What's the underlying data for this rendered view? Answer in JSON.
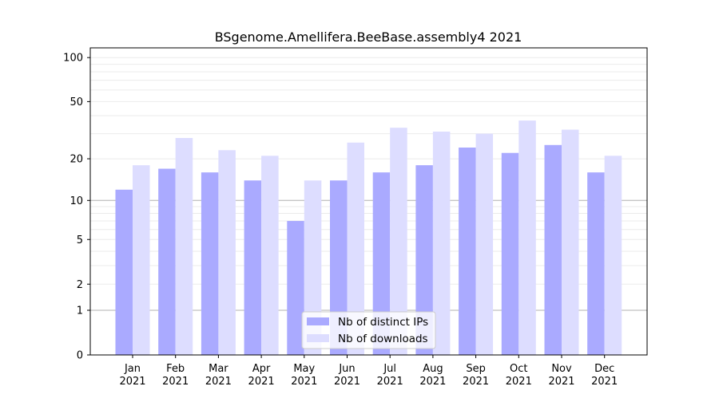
{
  "chart_data": {
    "type": "bar",
    "title": "BSgenome.Amellifera.BeeBase.assembly4 2021",
    "xlabel": "",
    "ylabel": "",
    "yscale": "log(1+y)",
    "ylim": [
      0,
      110
    ],
    "yticks": [
      0,
      1,
      2,
      5,
      10,
      20,
      50,
      100
    ],
    "ytick_labels": [
      "0",
      "1",
      "2",
      "5",
      "10",
      "20",
      "50",
      "100"
    ],
    "categories": [
      "Jan",
      "Feb",
      "Mar",
      "Apr",
      "May",
      "Jun",
      "Jul",
      "Aug",
      "Sep",
      "Oct",
      "Nov",
      "Dec"
    ],
    "category_year": "2021",
    "series": [
      {
        "name": "Nb of distinct IPs",
        "color": "#aaaaff",
        "values": [
          12,
          17,
          16,
          14,
          7,
          14,
          16,
          18,
          24,
          22,
          25,
          16
        ]
      },
      {
        "name": "Nb of downloads",
        "color": "#ddddff",
        "values": [
          18,
          28,
          23,
          21,
          14,
          26,
          33,
          31,
          30,
          37,
          32,
          21
        ]
      }
    ],
    "legend_position": "bottom-center",
    "grid": true
  }
}
